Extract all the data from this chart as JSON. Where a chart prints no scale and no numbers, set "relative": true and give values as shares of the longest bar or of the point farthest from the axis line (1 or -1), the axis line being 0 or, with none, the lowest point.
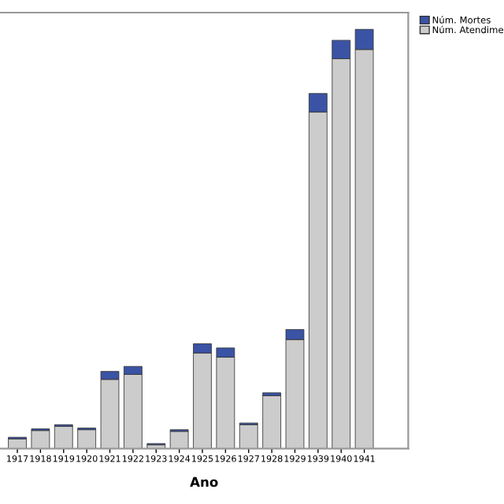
{
  "chart_data": {
    "type": "bar",
    "stacked": true,
    "relative": true,
    "xlabel": "Ano",
    "legend": "top right",
    "categories": [
      "1917",
      "1918",
      "1919",
      "1920",
      "1921",
      "1922",
      "1923",
      "1924",
      "1925",
      "1926",
      "1927",
      "1928",
      "1929",
      "1939",
      "1940",
      "1941"
    ],
    "series": [
      {
        "name": "Núm. Atendime",
        "color": "#cccccc",
        "values": [
          0.023,
          0.043,
          0.053,
          0.045,
          0.165,
          0.177,
          0.009,
          0.041,
          0.228,
          0.218,
          0.057,
          0.126,
          0.26,
          0.803,
          0.93,
          0.952
        ]
      },
      {
        "name": "Núm. Mortes",
        "color": "#3a53a4",
        "values": [
          0.004,
          0.004,
          0.004,
          0.004,
          0.019,
          0.019,
          0.003,
          0.004,
          0.022,
          0.022,
          0.004,
          0.007,
          0.024,
          0.044,
          0.044,
          0.048
        ]
      }
    ]
  }
}
